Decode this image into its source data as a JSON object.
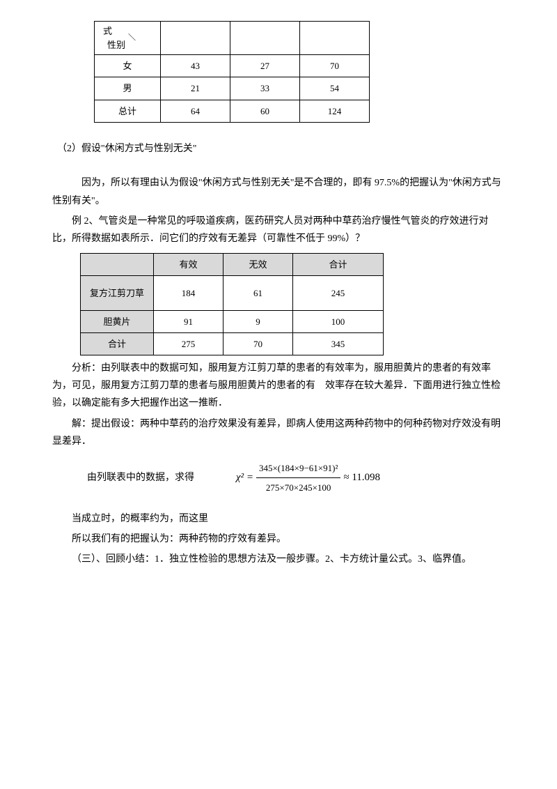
{
  "table1": {
    "header_diag_top": "式",
    "header_diag_slash": "＼",
    "header_diag_bottom": "性别",
    "rows": [
      {
        "label": "女",
        "c1": "43",
        "c2": "27",
        "c3": "70"
      },
      {
        "label": "男",
        "c1": "21",
        "c2": "33",
        "c3": "54"
      },
      {
        "label": "总计",
        "c1": "64",
        "c2": "60",
        "c3": "124"
      }
    ]
  },
  "p1": "（2）假设\"休闲方式与性别无关\"",
  "p2": "因为，所以有理由认为假设\"休闲方式与性别无关\"是不合理的，即有 97.5%的把握认为\"休闲方式与性别有关\"。",
  "p3": "例 2、气管炎是一种常见的呼吸道疾病，医药研究人员对两种中草药治疗慢性气管炎的疗效进行对比，所得数据如表所示．问它们的疗效有无差异（可靠性不低于 99%）？",
  "table2": {
    "headers": [
      "",
      "有效",
      "无效",
      "合计"
    ],
    "rows": [
      {
        "label": "复方江剪刀草",
        "c1": "184",
        "c2": "61",
        "c3": "245"
      },
      {
        "label": "胆黄片",
        "c1": "91",
        "c2": "9",
        "c3": "100"
      },
      {
        "label": "合计",
        "c1": "275",
        "c2": "70",
        "c3": "345"
      }
    ]
  },
  "p4": "分析：由列联表中的数据可知，服用复方江剪刀草的患者的有效率为，服用胆黄片的患者的有效率为，可见，服用复方江剪刀草的患者与服用胆黄片的患者的有　效率存在较大差异．下面用进行独立性检验，以确定能有多大把握作出这一推断．",
  "p5": "解：提出假设：两种中草药的治疗效果没有差异，即病人使用这两种药物中的何种药物对疗效没有明显差异．",
  "formula_label": "由列联表中的数据，求得",
  "formula": {
    "lhs": "χ² = ",
    "num": "345×(184×9−61×91)²",
    "den": "275×70×245×100",
    "approx": " ≈ 11.098"
  },
  "p6": "当成立时，的概率约为，而这里",
  "p7": "所以我们有的把握认为：两种药物的疗效有差异。",
  "p8": "（三）、回顾小结：1．独立性检验的思想方法及一般步骤。2、卡方统计量公式。3、临界值。"
}
